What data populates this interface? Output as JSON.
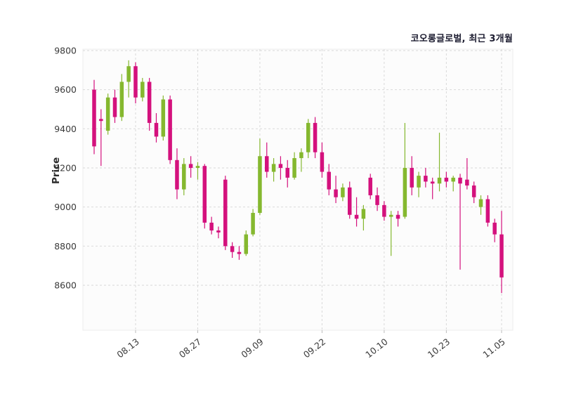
{
  "chart_data": {
    "type": "candlestick",
    "title": "코오롱글로벌, 최근 3개월",
    "ylabel": "Price",
    "xlabel": "",
    "grid": "dashed",
    "ylim": [
      8370,
      9807
    ],
    "y_ticks": [
      9800,
      9600,
      9400,
      9200,
      9000,
      8800,
      8600
    ],
    "x_ticks": [
      {
        "index": 6,
        "label": "08.13"
      },
      {
        "index": 15,
        "label": "08.27"
      },
      {
        "index": 24,
        "label": "09.09"
      },
      {
        "index": 33,
        "label": "09.22"
      },
      {
        "index": 42,
        "label": "10.10"
      },
      {
        "index": 51,
        "label": "10.23"
      },
      {
        "index": 59,
        "label": "11.05"
      }
    ],
    "up_color": "#85b82f",
    "down_color": "#d4117d",
    "grid_color": "#d9d9d9",
    "plot_bg": "#fcfcfc",
    "candles_ohlc": [
      [
        9600,
        9650,
        9270,
        9310
      ],
      [
        9450,
        9500,
        9210,
        9440
      ],
      [
        9390,
        9580,
        9370,
        9560
      ],
      [
        9560,
        9600,
        9430,
        9460
      ],
      [
        9460,
        9680,
        9440,
        9640
      ],
      [
        9640,
        9750,
        9560,
        9720
      ],
      [
        9720,
        9740,
        9530,
        9560
      ],
      [
        9560,
        9660,
        9540,
        9640
      ],
      [
        9640,
        9660,
        9390,
        9430
      ],
      [
        9430,
        9480,
        9330,
        9360
      ],
      [
        9360,
        9570,
        9340,
        9550
      ],
      [
        9550,
        9570,
        9220,
        9240
      ],
      [
        9240,
        9300,
        9040,
        9090
      ],
      [
        9090,
        9250,
        9060,
        9220
      ],
      [
        9220,
        9260,
        9150,
        9200
      ],
      [
        9200,
        9230,
        9140,
        9210
      ],
      [
        9210,
        9220,
        8890,
        8920
      ],
      [
        8920,
        8950,
        8860,
        8880
      ],
      [
        8880,
        8900,
        8840,
        8870
      ],
      [
        9140,
        9160,
        8780,
        8800
      ],
      [
        8800,
        8820,
        8740,
        8770
      ],
      [
        8770,
        8800,
        8730,
        8760
      ],
      [
        8760,
        8880,
        8750,
        8860
      ],
      [
        8860,
        8990,
        8850,
        8970
      ],
      [
        8970,
        9350,
        8960,
        9260
      ],
      [
        9260,
        9330,
        9150,
        9180
      ],
      [
        9180,
        9250,
        9130,
        9220
      ],
      [
        9220,
        9260,
        9140,
        9200
      ],
      [
        9200,
        9240,
        9100,
        9150
      ],
      [
        9150,
        9280,
        9140,
        9250
      ],
      [
        9250,
        9300,
        9180,
        9280
      ],
      [
        9280,
        9450,
        9250,
        9430
      ],
      [
        9430,
        9460,
        9250,
        9280
      ],
      [
        9280,
        9330,
        9150,
        9180
      ],
      [
        9180,
        9220,
        9060,
        9090
      ],
      [
        9090,
        9160,
        9020,
        9050
      ],
      [
        9050,
        9120,
        9030,
        9100
      ],
      [
        9100,
        9130,
        8940,
        8960
      ],
      [
        8960,
        9050,
        8900,
        8940
      ],
      [
        8940,
        9010,
        8880,
        8990
      ],
      [
        9150,
        9170,
        9040,
        9060
      ],
      [
        9060,
        9100,
        8980,
        9010
      ],
      [
        9010,
        9030,
        8930,
        8950
      ],
      [
        8950,
        8980,
        8750,
        8960
      ],
      [
        8960,
        8980,
        8900,
        8940
      ],
      [
        8950,
        9430,
        8940,
        9200
      ],
      [
        9200,
        9260,
        9060,
        9100
      ],
      [
        9100,
        9180,
        9050,
        9160
      ],
      [
        9160,
        9200,
        9100,
        9130
      ],
      [
        9130,
        9150,
        9040,
        9120
      ],
      [
        9120,
        9380,
        9080,
        9150
      ],
      [
        9150,
        9180,
        9100,
        9130
      ],
      [
        9130,
        9160,
        9080,
        9150
      ],
      [
        9150,
        9170,
        8680,
        9120
      ],
      [
        9140,
        9250,
        9090,
        9110
      ],
      [
        9110,
        9130,
        9020,
        9050
      ],
      [
        9000,
        9060,
        8960,
        9040
      ],
      [
        9040,
        9060,
        8900,
        8920
      ],
      [
        8920,
        8940,
        8820,
        8860
      ],
      [
        8860,
        8980,
        8560,
        8640
      ]
    ]
  }
}
